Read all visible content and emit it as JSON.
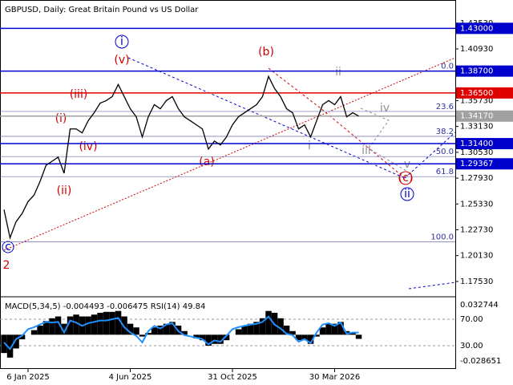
{
  "chart_data": {
    "type": "line",
    "title": "GBPUSD, Daily:  Great Britain Pound vs US Dollar",
    "categories": [
      null,
      null,
      null,
      null,
      "6 Jan 2025",
      null,
      null,
      null,
      null,
      null,
      null,
      null,
      null,
      null,
      null,
      null,
      null,
      null,
      null,
      null,
      null,
      "4 Jun 2025",
      null,
      null,
      null,
      null,
      null,
      null,
      null,
      null,
      null,
      null,
      null,
      null,
      null,
      null,
      null,
      null,
      "31 Oct 2025",
      null,
      null,
      null,
      null,
      null,
      null,
      null,
      null,
      null,
      null,
      null,
      null,
      null,
      null,
      null,
      null,
      "30 Mar 2026",
      null,
      null,
      null,
      null
    ],
    "series": [
      {
        "name": "GBPUSD",
        "color": "#000000",
        "values": [
          1.2476,
          1.2192,
          1.2354,
          1.2435,
          1.2557,
          1.2622,
          1.276,
          1.2923,
          1.2963,
          1.3004,
          1.2842,
          1.3288,
          1.3288,
          1.3248,
          1.337,
          1.3451,
          1.3548,
          1.3573,
          1.3613,
          1.3735,
          1.3613,
          1.3491,
          1.341,
          1.3207,
          1.341,
          1.3532,
          1.3491,
          1.3573,
          1.3613,
          1.3491,
          1.341,
          1.337,
          1.3329,
          1.3288,
          1.3085,
          1.3166,
          1.3126,
          1.3207,
          1.3329,
          1.341,
          1.3451,
          1.3491,
          1.3532,
          1.3613,
          1.3816,
          1.3695,
          1.3613,
          1.3491,
          1.3451,
          1.3288,
          1.3329,
          1.3207,
          1.337,
          1.3532,
          1.3573,
          1.3532,
          1.3613,
          1.341,
          1.3451,
          1.3417
        ]
      }
    ],
    "ylim": [
      1.1615,
      1.4553
    ],
    "yticks": [
      {
        "value": 1.4353,
        "label": "1.43530"
      },
      {
        "value": 1.4093,
        "label": "1.40930"
      },
      {
        "value": 1.3573,
        "label": "1.35730"
      },
      {
        "value": 1.3313,
        "label": "1.33130"
      },
      {
        "value": 1.3053,
        "label": "1.30530"
      },
      {
        "value": 1.2793,
        "label": "1.27930"
      },
      {
        "value": 1.2533,
        "label": "1.25330"
      },
      {
        "value": 1.2273,
        "label": "1.22730"
      },
      {
        "value": 1.2013,
        "label": "1.20130"
      },
      {
        "value": 1.1753,
        "label": "1.17530"
      }
    ],
    "levels": [
      {
        "value": 1.43,
        "label": "1.43000",
        "color": "#0000cc"
      },
      {
        "value": 1.387,
        "label": "1.38700",
        "color": "#0000cc"
      },
      {
        "value": 1.365,
        "label": "1.36500",
        "color": "#e00000"
      },
      {
        "value": 1.3417,
        "label": "1.34170",
        "color": "#a0a0a0"
      },
      {
        "value": 1.314,
        "label": "1.31400",
        "color": "#0000cc"
      },
      {
        "value": 1.29367,
        "label": "1.29367",
        "color": "#0000cc"
      }
    ],
    "fib_levels": [
      {
        "value": 1.387,
        "label": "0.0"
      },
      {
        "value": 1.3464,
        "label": "23.6"
      },
      {
        "value": 1.3213,
        "label": "38.2"
      },
      {
        "value": 1.301,
        "label": "50.0"
      },
      {
        "value": 1.2808,
        "label": "61.8"
      },
      {
        "value": 1.2151,
        "label": "100.0"
      }
    ],
    "waves": [
      "2",
      "c",
      "(i)",
      "(ii)",
      "(iii)",
      "(iv)",
      "(v)",
      "i",
      "(a)",
      "(b)",
      "(c)",
      "ii",
      "ii",
      "i",
      "iii",
      "iv",
      "v"
    ],
    "indicator": {
      "title": "MACD(5,34,5) -0.004493 -0.006475 RSI(14) 49.84",
      "macd": [
        -0.02,
        -0.025,
        -0.015,
        -0.005,
        0.0,
        0.005,
        0.01,
        0.015,
        0.018,
        0.02,
        0.012,
        0.02,
        0.022,
        0.02,
        0.02,
        0.022,
        0.024,
        0.025,
        0.025,
        0.026,
        0.02,
        0.012,
        0.008,
        -0.002,
        0.002,
        0.008,
        0.01,
        0.012,
        0.014,
        0.01,
        0.004,
        0.0,
        -0.004,
        -0.006,
        -0.012,
        -0.01,
        -0.01,
        -0.006,
        0.0,
        0.006,
        0.01,
        0.012,
        0.014,
        0.018,
        0.026,
        0.024,
        0.018,
        0.01,
        0.004,
        -0.006,
        -0.006,
        -0.01,
        -0.002,
        0.008,
        0.012,
        0.012,
        0.014,
        0.004,
        0.002,
        -0.004493
      ],
      "macd_color": "#000000",
      "rsi": [
        35,
        25,
        40,
        45,
        55,
        58,
        62,
        66,
        65,
        66,
        50,
        68,
        65,
        60,
        64,
        66,
        68,
        68,
        70,
        72,
        58,
        50,
        45,
        35,
        52,
        60,
        56,
        62,
        64,
        52,
        46,
        44,
        42,
        40,
        32,
        38,
        36,
        45,
        55,
        58,
        60,
        62,
        63,
        66,
        74,
        62,
        56,
        48,
        46,
        36,
        40,
        34,
        50,
        62,
        64,
        60,
        65,
        48,
        50,
        49.84
      ],
      "rsi_color": "#1e90ff",
      "macd_lim": [
        -0.028651,
        0.032744
      ],
      "macd_ticks": [
        {
          "value": 0.032744,
          "label": "0.032744"
        },
        {
          "value": -0.028651,
          "label": "-0.028651"
        }
      ],
      "rsi_ticks": [
        {
          "value": 70,
          "label": "70.00"
        },
        {
          "value": 30,
          "label": "30.00"
        }
      ]
    }
  }
}
